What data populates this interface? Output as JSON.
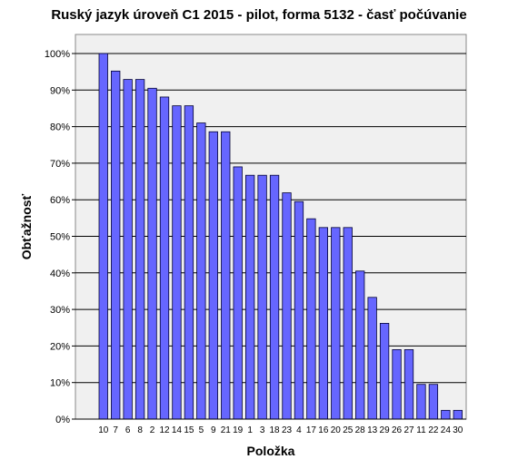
{
  "chart_data": {
    "type": "bar",
    "title": "Ruský jazyk úroveň C1 2015 - pilot, forma 5132 - časť počúvanie",
    "xlabel": "Položka",
    "ylabel": "Obťažnosť",
    "ylim": [
      0,
      100
    ],
    "yticks": [
      "0%",
      "10%",
      "20%",
      "30%",
      "40%",
      "50%",
      "60%",
      "70%",
      "80%",
      "90%",
      "100%"
    ],
    "categories": [
      "10",
      "7",
      "6",
      "8",
      "2",
      "12",
      "14",
      "15",
      "5",
      "9",
      "21",
      "19",
      "1",
      "3",
      "18",
      "23",
      "4",
      "17",
      "16",
      "20",
      "25",
      "28",
      "13",
      "29",
      "26",
      "27",
      "11",
      "22",
      "24",
      "30"
    ],
    "values": [
      100,
      95.2,
      92.9,
      92.9,
      90.5,
      88.1,
      85.7,
      85.7,
      81.0,
      78.6,
      78.6,
      69.0,
      66.7,
      66.7,
      66.7,
      61.9,
      59.5,
      54.8,
      52.4,
      52.4,
      52.4,
      40.5,
      33.3,
      26.2,
      19.0,
      19.0,
      9.5,
      9.5,
      2.4,
      2.4
    ],
    "grid": true,
    "colors": {
      "bar_fill": "#6666ff",
      "bar_stroke": "#000033",
      "plot_bg": "#f0f0f0",
      "grid": "#000000"
    }
  }
}
